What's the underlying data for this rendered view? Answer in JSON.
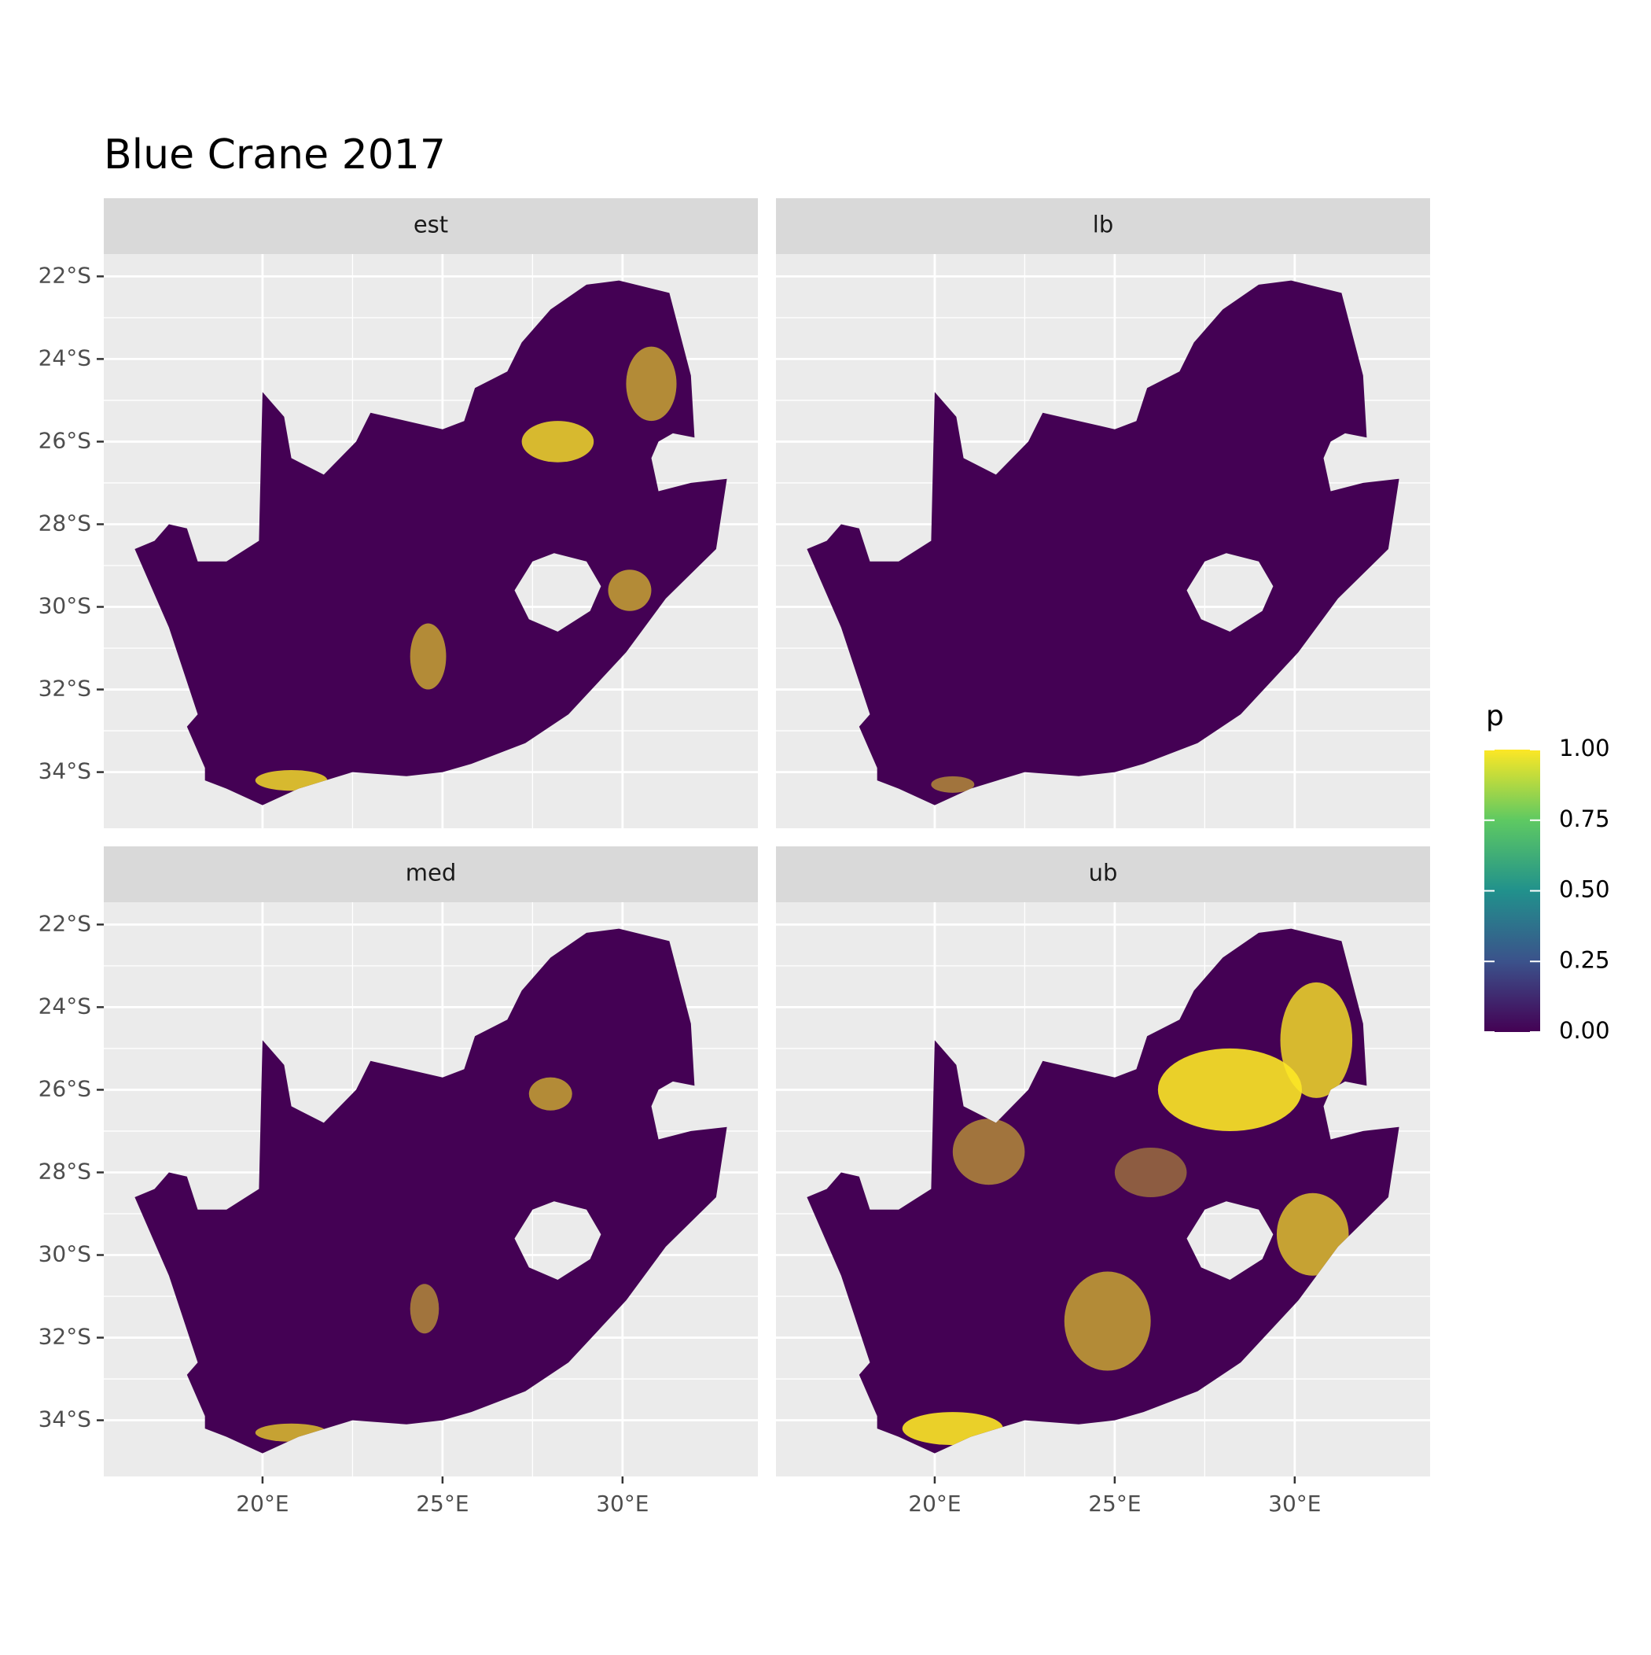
{
  "chart_data": {
    "type": "raster_map",
    "title": "Blue Crane 2017",
    "facets": [
      "est",
      "lb",
      "med",
      "ub"
    ],
    "xlim": [
      15.59,
      33.76
    ],
    "ylim": [
      -35.36,
      -21.46
    ],
    "xticks": [
      {
        "value": 20,
        "label": "20°E"
      },
      {
        "value": 25,
        "label": "25°E"
      },
      {
        "value": 30,
        "label": "30°E"
      }
    ],
    "yticks": [
      {
        "value": -22,
        "label": "22°S"
      },
      {
        "value": -24,
        "label": "24°S"
      },
      {
        "value": -26,
        "label": "26°S"
      },
      {
        "value": -28,
        "label": "28°S"
      },
      {
        "value": -30,
        "label": "30°S"
      },
      {
        "value": -32,
        "label": "32°S"
      },
      {
        "value": -34,
        "label": "34°S"
      }
    ],
    "grid": true,
    "legend": {
      "title": "p",
      "colormap": [
        "#440154",
        "#3b528b",
        "#21918c",
        "#5ec962",
        "#fde725"
      ],
      "lim": [
        0,
        1
      ],
      "ticks": [
        {
          "value": 0,
          "label": "0.00"
        },
        {
          "value": 0.25,
          "label": "0.25"
        },
        {
          "value": 0.5,
          "label": "0.50"
        },
        {
          "value": 0.75,
          "label": "0.75"
        },
        {
          "value": 1,
          "label": "1.00"
        }
      ]
    }
  }
}
